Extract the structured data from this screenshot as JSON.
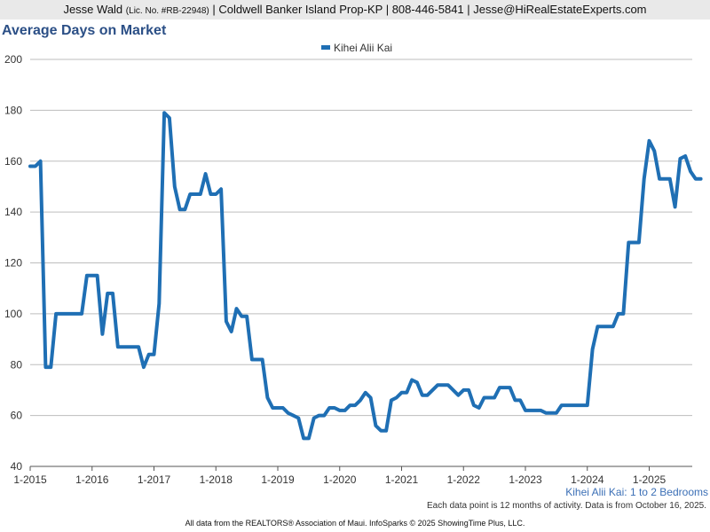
{
  "header": {
    "agent": "Jesse Wald",
    "license": "(Lic. No. #RB-22948)",
    "details": "| Coldwell Banker Island Prop-KP | 808-446-5841 | Jesse@HiRealEstateExperts.com"
  },
  "chart_data": {
    "type": "line",
    "title": "Average Days on Market",
    "subtitle": "Kihei Alii Kai: 1 to 2 Bedrooms",
    "note": "Each data point is 12 months of activity. Data is from October 16, 2025.",
    "legend_position": "top-center",
    "grid": true,
    "ylim": [
      40,
      200
    ],
    "yticks": [
      40,
      60,
      80,
      100,
      120,
      140,
      160,
      180,
      200
    ],
    "xticks": [
      "1-2015",
      "1-2016",
      "1-2017",
      "1-2018",
      "1-2019",
      "1-2020",
      "1-2021",
      "1-2022",
      "1-2023",
      "1-2024",
      "1-2025"
    ],
    "x_start": "1-2015",
    "x_interval": "month",
    "series": [
      {
        "name": "Kihei Alii Kai",
        "color": "#1f6fb4",
        "values": [
          158,
          158,
          160,
          79,
          79,
          100,
          100,
          100,
          100,
          100,
          100,
          115,
          115,
          115,
          92,
          108,
          108,
          87,
          87,
          87,
          87,
          87,
          79,
          84,
          84,
          104,
          179,
          177,
          150,
          141,
          141,
          147,
          147,
          147,
          155,
          147,
          147,
          149,
          97,
          93,
          102,
          99,
          99,
          82,
          82,
          82,
          67,
          63,
          63,
          63,
          61,
          60,
          59,
          51,
          51,
          59,
          60,
          60,
          63,
          63,
          62,
          62,
          64,
          64,
          66,
          69,
          67,
          56,
          54,
          54,
          66,
          67,
          69,
          69,
          74,
          73,
          68,
          68,
          70,
          72,
          72,
          72,
          70,
          68,
          70,
          70,
          64,
          63,
          67,
          67,
          67,
          71,
          71,
          71,
          66,
          66,
          62,
          62,
          62,
          62,
          61,
          61,
          61,
          64,
          64,
          64,
          64,
          64,
          64,
          86,
          95,
          95,
          95,
          95,
          100,
          100,
          128,
          128,
          128,
          153,
          168,
          164,
          153,
          153,
          153,
          142,
          161,
          162,
          156,
          153,
          153
        ]
      }
    ]
  },
  "footer": {
    "text": "All data from the REALTORS® Association of Maui. InfoSparks © 2025 ShowingTime Plus, LLC."
  }
}
